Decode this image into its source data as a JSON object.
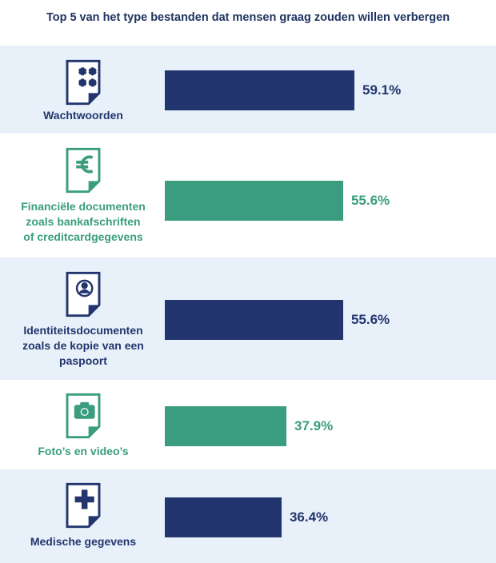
{
  "title": "Top 5 van het type bestanden dat mensen graag zouden willen verbergen",
  "colors": {
    "navy": "#22356e",
    "green": "#3a9d7f",
    "shade": "#e8f1f9"
  },
  "rows": [
    {
      "icon": "asterisks-document-icon",
      "lines": [
        "Wachtwoorden"
      ],
      "value_label": "59.1%"
    },
    {
      "icon": "euro-document-icon",
      "lines": [
        "Financiële documenten",
        "zoals bankafschriften",
        "of creditcardgegevens"
      ],
      "value_label": "55.6%"
    },
    {
      "icon": "id-document-icon",
      "lines": [
        "Identiteitsdocumenten",
        "zoals de kopie van een",
        "paspoort"
      ],
      "value_label": "55.6%"
    },
    {
      "icon": "camera-document-icon",
      "lines": [
        "Foto’s en video’s"
      ],
      "value_label": "37.9%"
    },
    {
      "icon": "medical-document-icon",
      "lines": [
        "Medische gegevens"
      ],
      "value_label": "36.4%"
    }
  ],
  "chart_data": {
    "type": "bar",
    "orientation": "horizontal",
    "title": "Top 5 van het type bestanden dat mensen graag zouden willen verbergen",
    "categories": [
      "Wachtwoorden",
      "Financiële documenten zoals bankafschriften of creditcardgegevens",
      "Identiteitsdocumenten zoals de kopie van een paspoort",
      "Foto’s en video’s",
      "Medische gegevens"
    ],
    "values": [
      59.1,
      55.6,
      55.6,
      37.9,
      36.4
    ],
    "value_labels": [
      "59.1%",
      "55.6%",
      "55.6%",
      "37.9%",
      "36.4%"
    ],
    "bar_colors": [
      "#22356e",
      "#3a9d7f",
      "#22356e",
      "#3a9d7f",
      "#22356e"
    ],
    "grid": false,
    "legend": "none"
  }
}
